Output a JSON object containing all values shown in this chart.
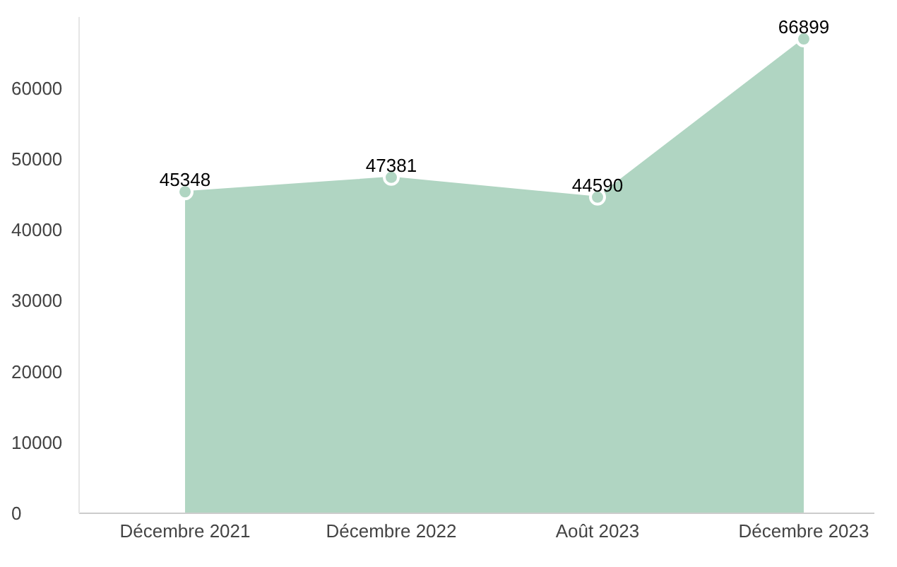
{
  "chart_data": {
    "type": "area",
    "categories": [
      "Décembre 2021",
      "Décembre 2022",
      "Août 2023",
      "Décembre 2023"
    ],
    "series": [
      {
        "color": "#b0d5c2",
        "values": [
          45348,
          47381,
          44590,
          66899
        ]
      }
    ],
    "ylim": [
      0,
      70000
    ],
    "yticks": [
      0,
      10000,
      20000,
      30000,
      40000,
      50000,
      60000
    ],
    "data_labels": true,
    "grid": false,
    "legend": false,
    "marker": "circle"
  }
}
